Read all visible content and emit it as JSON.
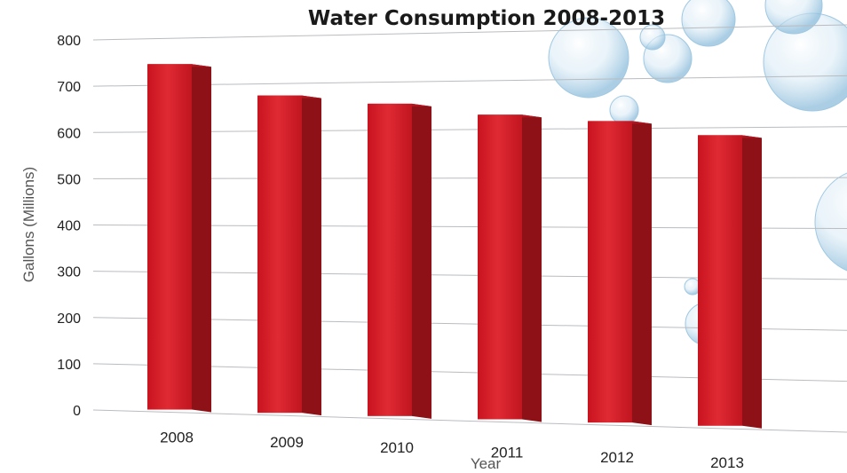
{
  "chart_data": {
    "type": "bar",
    "title": "Water Consumption 2008-2013",
    "xlabel": "Year",
    "ylabel": "Gallons (Millions)",
    "categories": [
      "2008",
      "2009",
      "2010",
      "2011",
      "2012",
      "2013"
    ],
    "values": [
      745,
      675,
      655,
      630,
      615,
      585
    ],
    "ylim": [
      0,
      800
    ],
    "yticks": [
      0,
      100,
      200,
      300,
      400,
      500,
      600,
      700,
      800
    ],
    "grid": true,
    "legend": "none",
    "style": "3d-perspective",
    "colors": {
      "bar_front": "#d81f2a",
      "bar_side": "#8e1117",
      "bar_top": "#b3161f",
      "grid": "#b9bcc0",
      "bubble": "#a9cfe6"
    }
  }
}
